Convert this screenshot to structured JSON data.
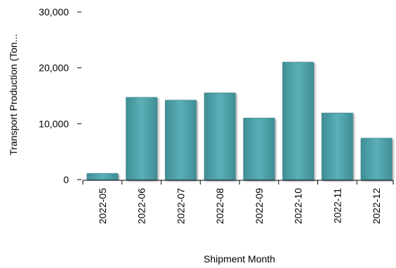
{
  "chart_data": {
    "type": "bar",
    "title": "",
    "xlabel": "Shipment Month",
    "ylabel": "Transport Production (Ton...",
    "categories": [
      "2022-05",
      "2022-06",
      "2022-07",
      "2022-08",
      "2022-09",
      "2022-10",
      "2022-11",
      "2022-12"
    ],
    "series": [
      {
        "values": [
          1100,
          14700,
          14200,
          15500,
          11000,
          21000,
          11900,
          7400
        ]
      }
    ],
    "ylim": [
      0,
      30000
    ],
    "yticks": [
      "0",
      "10,000",
      "20,000",
      "30,000"
    ],
    "grid": false,
    "legend": "none",
    "colors": {
      "bar": "#4e9ea6",
      "bar_edge": "#3f8891",
      "axis": "#000000"
    }
  }
}
